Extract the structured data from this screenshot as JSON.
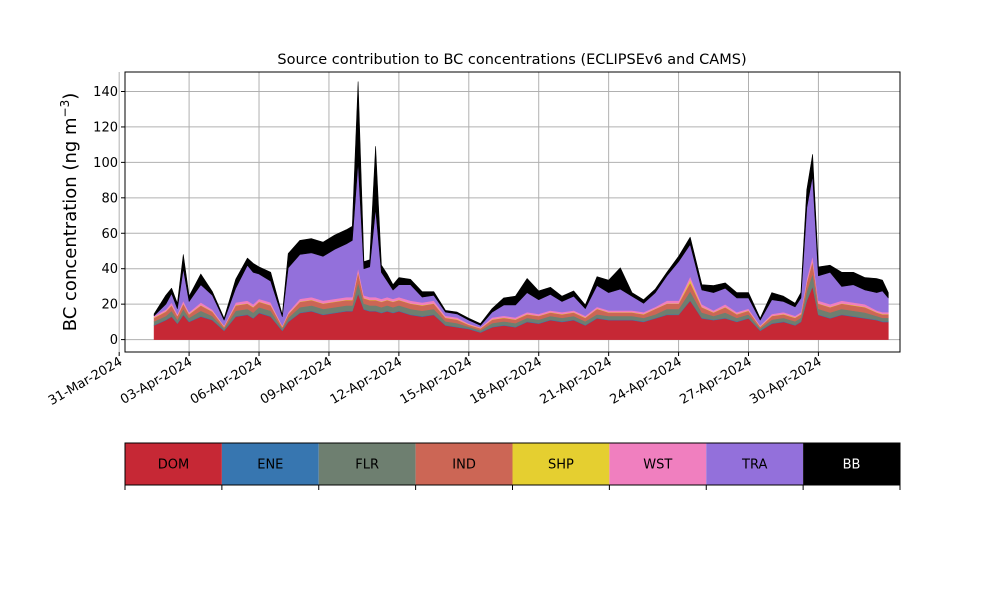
{
  "chart_data": {
    "type": "area",
    "stacked": true,
    "title": "Source contribution to BC concentrations (ECLIPSEv6 and CAMS)",
    "ylabel": "BC concentration (ng m⁻³)",
    "ylabel_base": "BC concentration (ng m",
    "ylabel_exp": "−3",
    "ylabel_close": ")",
    "xlabel": "",
    "grid": true,
    "xlim": [
      "2024-03-31T06:00",
      "2024-05-03T12:00"
    ],
    "ylim": [
      -7,
      151
    ],
    "yticks": [
      0,
      20,
      40,
      60,
      80,
      100,
      120,
      140
    ],
    "xticks": [
      {
        "date": "2024-03-31",
        "label": "31-Mar-2024"
      },
      {
        "date": "2024-04-03",
        "label": "03-Apr-2024"
      },
      {
        "date": "2024-04-06",
        "label": "06-Apr-2024"
      },
      {
        "date": "2024-04-09",
        "label": "09-Apr-2024"
      },
      {
        "date": "2024-04-12",
        "label": "12-Apr-2024"
      },
      {
        "date": "2024-04-15",
        "label": "15-Apr-2024"
      },
      {
        "date": "2024-04-18",
        "label": "18-Apr-2024"
      },
      {
        "date": "2024-04-21",
        "label": "21-Apr-2024"
      },
      {
        "date": "2024-04-24",
        "label": "24-Apr-2024"
      },
      {
        "date": "2024-04-27",
        "label": "27-Apr-2024"
      },
      {
        "date": "2024-04-30",
        "label": "30-Apr-2024"
      }
    ],
    "x": [
      "2024-04-01T12:00",
      "2024-04-02T00:00",
      "2024-04-02T06:00",
      "2024-04-02T12:00",
      "2024-04-02T18:00",
      "2024-04-03T00:00",
      "2024-04-03T12:00",
      "2024-04-04T00:00",
      "2024-04-04T12:00",
      "2024-04-05T00:00",
      "2024-04-05T12:00",
      "2024-04-05T18:00",
      "2024-04-06T00:00",
      "2024-04-06T12:00",
      "2024-04-07T00:00",
      "2024-04-07T06:00",
      "2024-04-07T18:00",
      "2024-04-08T06:00",
      "2024-04-08T18:00",
      "2024-04-09T06:00",
      "2024-04-09T18:00",
      "2024-04-10T00:00",
      "2024-04-10T06:00",
      "2024-04-10T12:00",
      "2024-04-10T18:00",
      "2024-04-11T00:00",
      "2024-04-11T06:00",
      "2024-04-11T12:00",
      "2024-04-11T18:00",
      "2024-04-12T00:00",
      "2024-04-12T12:00",
      "2024-04-13T00:00",
      "2024-04-13T12:00",
      "2024-04-14T00:00",
      "2024-04-14T12:00",
      "2024-04-15T00:00",
      "2024-04-15T12:00",
      "2024-04-16T00:00",
      "2024-04-16T12:00",
      "2024-04-17T00:00",
      "2024-04-17T12:00",
      "2024-04-18T00:00",
      "2024-04-18T12:00",
      "2024-04-19T00:00",
      "2024-04-19T12:00",
      "2024-04-20T00:00",
      "2024-04-20T12:00",
      "2024-04-21T00:00",
      "2024-04-21T12:00",
      "2024-04-22T00:00",
      "2024-04-22T12:00",
      "2024-04-23T00:00",
      "2024-04-23T12:00",
      "2024-04-24T00:00",
      "2024-04-24T12:00",
      "2024-04-25T00:00",
      "2024-04-25T12:00",
      "2024-04-26T00:00",
      "2024-04-26T12:00",
      "2024-04-27T00:00",
      "2024-04-27T12:00",
      "2024-04-28T00:00",
      "2024-04-28T12:00",
      "2024-04-29T00:00",
      "2024-04-29T06:00",
      "2024-04-29T12:00",
      "2024-04-29T18:00",
      "2024-04-30T00:00",
      "2024-04-30T12:00",
      "2024-05-01T00:00",
      "2024-05-01T12:00",
      "2024-05-02T00:00",
      "2024-05-02T12:00",
      "2024-05-02T18:00",
      "2024-05-03T00:00"
    ],
    "series": [
      {
        "name": "DOM",
        "color": "#c62835",
        "values": [
          8,
          11,
          13,
          9,
          14,
          10,
          13,
          11,
          5,
          13,
          14,
          12,
          15,
          13,
          5,
          10,
          15,
          16,
          14,
          15,
          16,
          16,
          26,
          17,
          16,
          16,
          15,
          16,
          15,
          16,
          14,
          13,
          14,
          8,
          7,
          6,
          4,
          7,
          8,
          7,
          10,
          9,
          11,
          10,
          11,
          8,
          12,
          11,
          11,
          11,
          10,
          12,
          14,
          14,
          22,
          12,
          11,
          12,
          10,
          12,
          5,
          9,
          10,
          8,
          10,
          22,
          30,
          14,
          12,
          14,
          13,
          12,
          11,
          10,
          10
        ]
      },
      {
        "name": "ENE",
        "color": "#3776b0",
        "values": [
          0.3,
          0.3,
          0.3,
          0.3,
          0.3,
          0.3,
          0.3,
          0.3,
          0.3,
          0.3,
          0.3,
          0.3,
          0.3,
          0.3,
          0.3,
          0.3,
          0.3,
          0.3,
          0.3,
          0.3,
          0.3,
          0.3,
          0.3,
          0.3,
          0.3,
          0.3,
          0.3,
          0.3,
          0.3,
          0.3,
          0.3,
          0.3,
          0.3,
          0.3,
          0.3,
          0.3,
          0.3,
          0.3,
          0.3,
          0.3,
          0.3,
          0.3,
          0.3,
          0.3,
          0.3,
          0.3,
          0.3,
          0.3,
          0.3,
          0.3,
          0.3,
          0.3,
          0.3,
          0.3,
          0.3,
          0.3,
          0.3,
          0.3,
          0.3,
          0.3,
          0.3,
          0.3,
          0.3,
          0.3,
          0.3,
          0.3,
          0.3,
          0.3,
          0.3,
          0.3,
          0.3,
          0.3,
          0.3,
          0.3,
          0.3
        ]
      },
      {
        "name": "FLR",
        "color": "#6e7f70",
        "values": [
          2,
          2,
          3,
          2,
          3,
          2,
          3,
          2,
          1,
          3,
          3,
          3,
          3,
          3,
          1,
          2,
          3,
          3,
          3,
          3,
          3,
          3,
          6,
          3,
          3,
          3,
          3,
          3,
          3,
          3,
          3,
          3,
          3,
          2,
          2,
          1,
          1,
          2,
          2,
          2,
          2,
          2,
          2,
          2,
          2,
          2,
          2,
          2,
          2,
          2,
          2,
          2,
          3,
          3,
          5,
          3,
          2,
          3,
          2,
          2,
          1,
          2,
          2,
          2,
          2,
          5,
          7,
          3,
          3,
          3,
          3,
          3,
          2,
          2,
          2
        ]
      },
      {
        "name": "IND",
        "color": "#cc6655",
        "values": [
          2,
          2.5,
          3,
          2,
          3,
          2,
          3,
          2.5,
          1,
          3,
          3,
          3,
          3,
          3,
          1,
          2,
          3,
          3,
          3,
          3,
          3,
          3,
          6,
          3,
          3,
          3,
          3,
          3,
          3,
          3,
          3,
          3,
          3,
          2,
          2,
          1,
          1,
          2,
          2,
          2,
          2,
          2,
          2,
          2,
          2,
          2,
          3,
          2,
          2,
          2,
          2,
          3,
          3,
          3,
          5,
          3,
          2,
          3,
          2,
          2,
          1,
          2,
          2,
          2,
          2,
          5,
          7,
          3,
          3,
          3,
          3,
          3,
          2,
          2,
          2
        ]
      },
      {
        "name": "SHP",
        "color": "#e5cf30",
        "values": [
          0.2,
          0.2,
          0.2,
          0.2,
          0.2,
          0.2,
          0.2,
          0.2,
          0.2,
          0.2,
          0.2,
          0.2,
          0.2,
          0.2,
          0.2,
          0.2,
          0.2,
          0.2,
          0.2,
          0.2,
          0.2,
          0.2,
          0.2,
          0.2,
          0.2,
          0.2,
          0.2,
          0.2,
          0.2,
          0.2,
          0.2,
          0.2,
          0.2,
          0.2,
          0.2,
          0.2,
          0.2,
          0.2,
          0.2,
          0.2,
          0.2,
          0.2,
          0.2,
          0.2,
          0.2,
          0.2,
          0.2,
          0.2,
          0.2,
          0.2,
          0.2,
          0.2,
          0.2,
          0.2,
          1.5,
          0.2,
          0.2,
          0.2,
          0.2,
          0.2,
          0.2,
          0.2,
          0.2,
          0.2,
          0.2,
          0.2,
          0.2,
          0.2,
          0.2,
          0.2,
          0.2,
          0.2,
          0.2,
          0.2,
          0.2
        ]
      },
      {
        "name": "WST",
        "color": "#f07fbf",
        "values": [
          1,
          1,
          1.5,
          1,
          1.5,
          1,
          1.5,
          1,
          0.5,
          1.5,
          1.5,
          1.5,
          1.5,
          1.5,
          0.5,
          1,
          1.5,
          1.5,
          1.5,
          1.5,
          1.5,
          1.5,
          2,
          1.5,
          1.5,
          1.5,
          1.5,
          1.5,
          1.5,
          1.5,
          1.5,
          1.5,
          1.5,
          1,
          1,
          0.5,
          0.5,
          1,
          1,
          1,
          1,
          1,
          1,
          1,
          1,
          1,
          1,
          1,
          1,
          1,
          1,
          1,
          1.5,
          1.5,
          2,
          1.5,
          1,
          1.5,
          1,
          1,
          0.5,
          1,
          1,
          1,
          1,
          2,
          3,
          1.5,
          1.5,
          1.5,
          1.5,
          1.5,
          1,
          1,
          1
        ]
      },
      {
        "name": "TRA",
        "color": "#9370db",
        "values": [
          0,
          3,
          5,
          3,
          18,
          6,
          10,
          8,
          3,
          8,
          20,
          18,
          14,
          12,
          5,
          25,
          25,
          25,
          25,
          28,
          30,
          32,
          60,
          15,
          17,
          50,
          15,
          9,
          5,
          7,
          9,
          3,
          3,
          2,
          2,
          2,
          1,
          3,
          6,
          7,
          11,
          8,
          9,
          6,
          8,
          4,
          12,
          10,
          12,
          8,
          5,
          8,
          14,
          22,
          18,
          8,
          10,
          9,
          8,
          6,
          3,
          8,
          6,
          5,
          8,
          40,
          45,
          14,
          18,
          8,
          10,
          8,
          10,
          12,
          8
        ]
      },
      {
        "name": "BB",
        "color": "#000000",
        "values": [
          1,
          5,
          3,
          3,
          8,
          3,
          6,
          2,
          1,
          5,
          4,
          5,
          4,
          5,
          1,
          8,
          8,
          8,
          8,
          8,
          8,
          8,
          45,
          4,
          4,
          35,
          4,
          4,
          3,
          4,
          3,
          3,
          2,
          1,
          1,
          1,
          1,
          2,
          4,
          5,
          8,
          5,
          4,
          3,
          3,
          2,
          5,
          7,
          12,
          2,
          2,
          2,
          2,
          3,
          4,
          3,
          4,
          3,
          3,
          3,
          1,
          4,
          3,
          2,
          3,
          10,
          12,
          5,
          4,
          8,
          7,
          7,
          8,
          6,
          3
        ]
      }
    ]
  },
  "legend": {
    "placement": "bottom",
    "items": [
      "DOM",
      "ENE",
      "FLR",
      "IND",
      "SHP",
      "WST",
      "TRA",
      "BB"
    ]
  }
}
